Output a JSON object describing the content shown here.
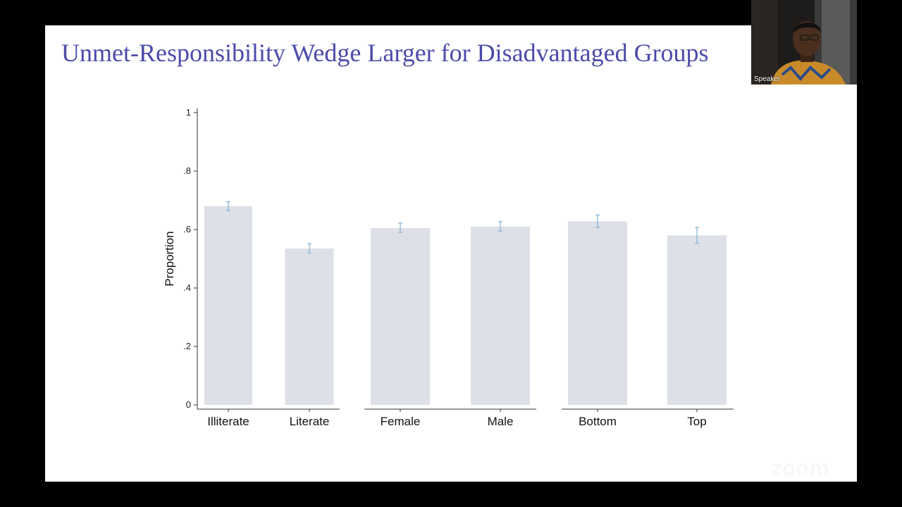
{
  "slide": {
    "title": "Unmet-Responsibility Wedge Larger for Disadvantaged Groups"
  },
  "speaker": {
    "name": "Speaker"
  },
  "watermark": {
    "text": "zoom"
  },
  "colors": {
    "background": "#000000",
    "slide": "#ffffff",
    "title": "#4b4bab",
    "bar": "#dde0e6",
    "error_bar": "#8ab7d8",
    "axis": "#333333"
  },
  "chart_data": {
    "type": "bar",
    "ylabel": "Proportion",
    "xlabel": "",
    "ylim": [
      0,
      1
    ],
    "yticks": [
      {
        "value": 0,
        "label": "0"
      },
      {
        "value": 0.2,
        "label": ".2"
      },
      {
        "value": 0.4,
        "label": ".4"
      },
      {
        "value": 0.6,
        "label": ".6"
      },
      {
        "value": 0.8,
        "label": ".8"
      },
      {
        "value": 1,
        "label": "1"
      }
    ],
    "grid": false,
    "legend": "none",
    "groups": [
      {
        "categories": [
          "Illiterate",
          "Literate"
        ],
        "values": [
          0.68,
          0.535
        ],
        "ci_low": [
          0.665,
          0.52
        ],
        "ci_high": [
          0.695,
          0.552
        ]
      },
      {
        "categories": [
          "Female",
          "Male"
        ],
        "values": [
          0.605,
          0.61
        ],
        "ci_low": [
          0.59,
          0.595
        ],
        "ci_high": [
          0.622,
          0.627
        ]
      },
      {
        "categories": [
          "Bottom",
          "Top"
        ],
        "values": [
          0.628,
          0.58
        ],
        "ci_low": [
          0.607,
          0.553
        ],
        "ci_high": [
          0.65,
          0.607
        ]
      }
    ]
  }
}
